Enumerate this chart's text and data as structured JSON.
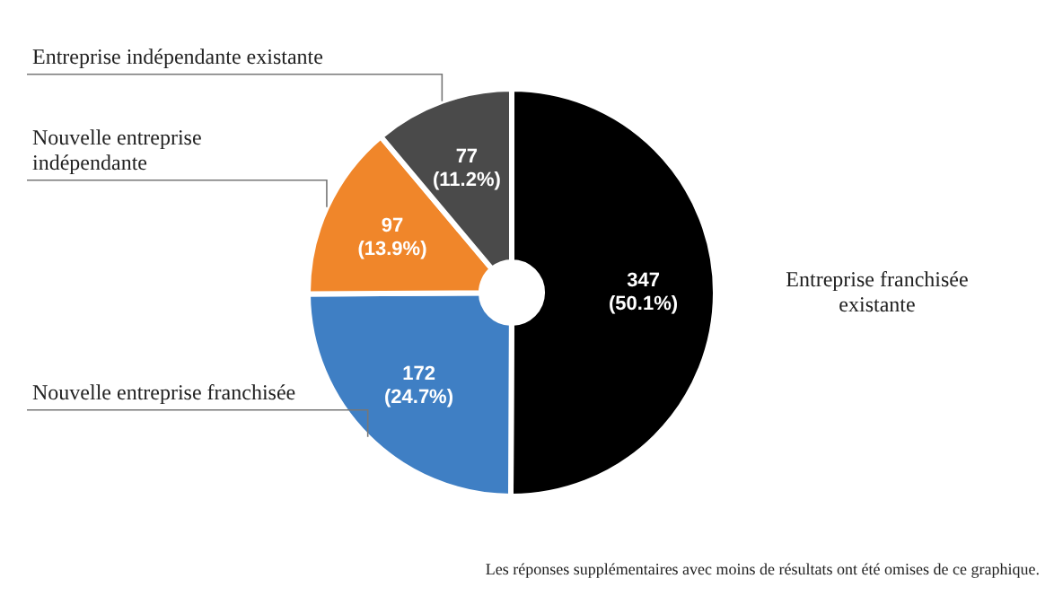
{
  "chart_data": {
    "type": "donut",
    "categories": [
      "Entreprise franchisée existante",
      "Nouvelle entreprise franchisée",
      "Nouvelle entreprise indépendante",
      "Entreprise indépendante existante"
    ],
    "values": [
      347,
      172,
      97,
      77
    ],
    "colors": [
      "#000000",
      "#3f7fc4",
      "#f0862a",
      "#4a4a4a"
    ],
    "value_labels": [
      "347\n(50.1%)",
      "172\n(24.7%)",
      "97\n(13.9%)",
      "77\n(11.2%)"
    ],
    "legend": false,
    "annotations": [
      "Les réponses supplémentaires avec moins de résultats ont été omises de ce graphique."
    ]
  }
}
